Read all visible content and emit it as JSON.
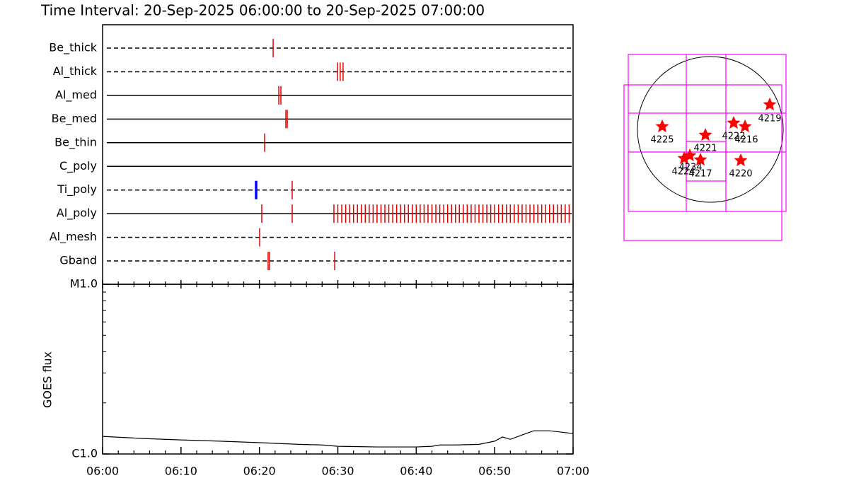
{
  "title": "Time Interval: 20-Sep-2025 06:00:00 to 20-Sep-2025 07:00:00",
  "chart_data": [
    {
      "type": "timeline",
      "xlim": [
        0,
        60
      ],
      "event_color": "#e00000",
      "rows": [
        {
          "name": "Be_thick",
          "style": "dashed",
          "times": [
            21.75
          ]
        },
        {
          "name": "Al_thick",
          "style": "dashed",
          "times": [
            29.96,
            30.3,
            30.67
          ]
        },
        {
          "name": "Al_med",
          "style": "solid",
          "times": [
            22.47,
            22.74
          ]
        },
        {
          "name": "Be_med",
          "style": "solid",
          "times": [
            23.37,
            23.55
          ]
        },
        {
          "name": "Be_thin",
          "style": "solid",
          "times": [
            20.66
          ]
        },
        {
          "name": "C_poly",
          "style": "solid",
          "times": []
        },
        {
          "name": "Ti_poly",
          "style": "dashed",
          "times": [
            19.58,
            24.18
          ],
          "colors": [
            "#0000ff",
            "#e00000"
          ]
        },
        {
          "name": "Al_poly",
          "style": "solid",
          "times": [
            20.3,
            24.18,
            29.5,
            30.0,
            30.5,
            31.0,
            31.5,
            32.0,
            32.5,
            33.0,
            33.5,
            34.0,
            34.5,
            35.0,
            35.5,
            36.0,
            36.5,
            37.0,
            37.5,
            38.0,
            38.5,
            39.0,
            39.5,
            40.0,
            40.5,
            41.0,
            41.5,
            42.0,
            42.5,
            43.0,
            43.5,
            44.0,
            44.5,
            45.0,
            45.5,
            46.0,
            46.5,
            47.0,
            47.5,
            48.0,
            48.5,
            49.0,
            49.5,
            50.0,
            50.5,
            51.0,
            51.5,
            52.0,
            52.5,
            53.0,
            53.5,
            54.0,
            54.5,
            55.0,
            55.5,
            56.0,
            56.5,
            57.0,
            57.5,
            58.0,
            58.5,
            59.0,
            59.5
          ]
        },
        {
          "name": "Al_mesh",
          "style": "dashed",
          "times": [
            20.03
          ]
        },
        {
          "name": "Gband",
          "style": "dashed",
          "times": [
            21.11,
            21.29,
            29.6
          ]
        }
      ]
    },
    {
      "type": "line",
      "y_label": "GOES flux",
      "log_scale": true,
      "color": "#000000",
      "xlim": [
        0,
        60
      ],
      "xticks": [
        {
          "value": 0,
          "label": "06:00"
        },
        {
          "value": 10,
          "label": "06:10"
        },
        {
          "value": 20,
          "label": "06:20"
        },
        {
          "value": 30,
          "label": "06:30"
        },
        {
          "value": 40,
          "label": "06:40"
        },
        {
          "value": 50,
          "label": "06:50"
        },
        {
          "value": 60,
          "label": "07:00"
        }
      ],
      "minor_xticks": [
        2,
        4,
        6,
        8,
        12,
        14,
        16,
        18,
        22,
        24,
        26,
        28,
        32,
        34,
        36,
        38,
        42,
        44,
        46,
        48,
        52,
        54,
        56,
        58
      ],
      "ylim": [
        1e-06,
        1e-05
      ],
      "yticks": [
        {
          "value": 1e-06,
          "label": "C1.0"
        },
        {
          "value": 1e-05,
          "label": "M1.0"
        }
      ],
      "minor_yticks": [
        2e-06,
        3e-06,
        4e-06,
        5e-06,
        6e-06,
        7e-06,
        8e-06,
        9e-06
      ],
      "x": [
        0,
        5,
        10,
        15,
        20,
        25,
        28,
        30,
        35,
        40,
        42,
        43,
        45,
        48,
        50,
        51,
        52,
        54,
        55,
        57,
        60
      ],
      "values": [
        1.27e-06,
        1.235e-06,
        1.21e-06,
        1.19e-06,
        1.166e-06,
        1.14e-06,
        1.13e-06,
        1.11e-06,
        1.1e-06,
        1.1e-06,
        1.11e-06,
        1.13e-06,
        1.13e-06,
        1.14e-06,
        1.19e-06,
        1.26e-06,
        1.22e-06,
        1.32e-06,
        1.37e-06,
        1.37e-06,
        1.32e-06
      ]
    }
  ],
  "map": {
    "regions": [
      "4225",
      "4221",
      "4222",
      "4216",
      "4219",
      "4220",
      "4224",
      "4234",
      "4217"
    ]
  }
}
